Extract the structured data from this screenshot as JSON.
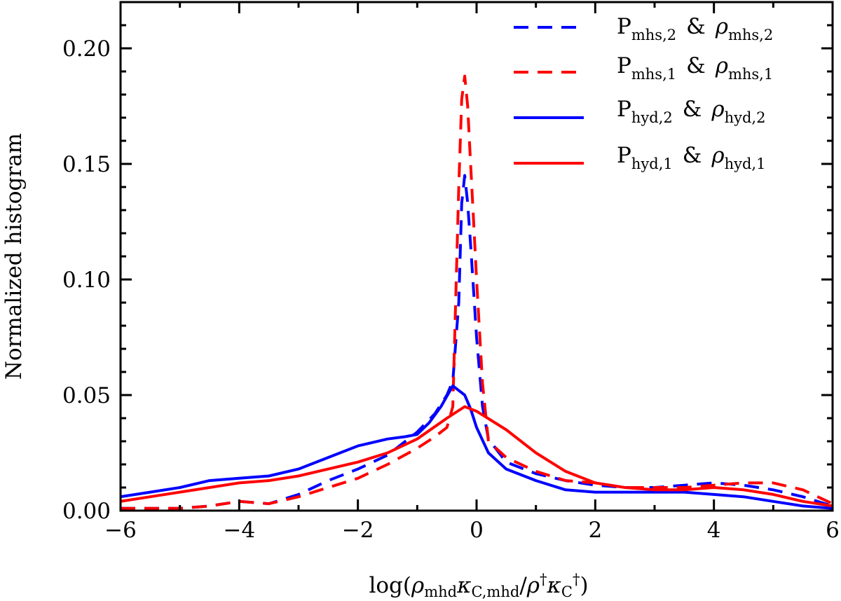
{
  "chart_data": {
    "type": "line",
    "title": "",
    "xlabel": {
      "prefix": "log(",
      "rho": "ρ",
      "mhd_sub": "mhd",
      "kappa": "κ",
      "c_mhd_sub": "C,mhd",
      "slash": "/",
      "dagger": "†",
      "c_sub": "C",
      "suffix": ")"
    },
    "ylabel": "Normalized histogram",
    "xlim": [
      -6,
      6
    ],
    "ylim": [
      0,
      0.22
    ],
    "xticks": [
      -6,
      -4,
      -2,
      0,
      2,
      4,
      6
    ],
    "xtick_labels": [
      "−6",
      "−4",
      "−2",
      "0",
      "2",
      "4",
      "6"
    ],
    "yticks": [
      0.0,
      0.05,
      0.1,
      0.15,
      0.2
    ],
    "ytick_labels": [
      "0.00",
      "0.05",
      "0.10",
      "0.15",
      "0.20"
    ],
    "legend_position": "top-right",
    "series": [
      {
        "name": "P_mhs,2 & ρ_mhs,2",
        "label": {
          "p": "P",
          "p_sub": "mhs,2",
          "amp": "&",
          "rho": "ρ",
          "rho_sub": "mhs,2"
        },
        "color": "#0000ff",
        "style": "dashed",
        "x": [
          -6.0,
          -5.5,
          -5.0,
          -4.5,
          -4.0,
          -3.5,
          -3.0,
          -2.5,
          -2.0,
          -1.5,
          -1.0,
          -0.7,
          -0.5,
          -0.4,
          -0.3,
          -0.25,
          -0.2,
          -0.15,
          -0.1,
          -0.05,
          0.0,
          0.1,
          0.2,
          0.5,
          1.0,
          1.5,
          2.0,
          2.5,
          3.0,
          3.5,
          4.0,
          4.5,
          5.0,
          5.5,
          6.0
        ],
        "y": [
          0.001,
          0.001,
          0.001,
          0.002,
          0.004,
          0.003,
          0.007,
          0.013,
          0.018,
          0.024,
          0.034,
          0.042,
          0.05,
          0.056,
          0.09,
          0.133,
          0.145,
          0.133,
          0.115,
          0.095,
          0.075,
          0.045,
          0.031,
          0.021,
          0.016,
          0.013,
          0.011,
          0.01,
          0.01,
          0.011,
          0.012,
          0.011,
          0.009,
          0.006,
          0.002
        ]
      },
      {
        "name": "P_mhs,1 & ρ_mhs,1",
        "label": {
          "p": "P",
          "p_sub": "mhs,1",
          "amp": "&",
          "rho": "ρ",
          "rho_sub": "mhs,1"
        },
        "color": "#ff0000",
        "style": "dashed",
        "x": [
          -6.0,
          -5.5,
          -5.0,
          -4.5,
          -4.0,
          -3.5,
          -3.0,
          -2.5,
          -2.0,
          -1.5,
          -1.0,
          -0.7,
          -0.5,
          -0.4,
          -0.3,
          -0.25,
          -0.2,
          -0.15,
          -0.1,
          -0.05,
          0.0,
          0.1,
          0.2,
          0.5,
          1.0,
          1.5,
          2.0,
          2.5,
          3.0,
          3.5,
          4.0,
          4.5,
          5.0,
          5.5,
          6.0
        ],
        "y": [
          0.001,
          0.001,
          0.001,
          0.002,
          0.004,
          0.003,
          0.006,
          0.01,
          0.014,
          0.02,
          0.027,
          0.032,
          0.036,
          0.045,
          0.14,
          0.178,
          0.188,
          0.175,
          0.15,
          0.125,
          0.1,
          0.055,
          0.03,
          0.023,
          0.017,
          0.013,
          0.012,
          0.01,
          0.01,
          0.01,
          0.011,
          0.012,
          0.012,
          0.009,
          0.003
        ]
      },
      {
        "name": "P_hyd,2 & ρ_hyd,2",
        "label": {
          "p": "P",
          "p_sub": "hyd,2",
          "amp": "&",
          "rho": "ρ",
          "rho_sub": "hyd,2"
        },
        "color": "#0000ff",
        "style": "solid",
        "x": [
          -6.0,
          -5.5,
          -5.0,
          -4.5,
          -4.0,
          -3.5,
          -3.0,
          -2.5,
          -2.0,
          -1.5,
          -1.2,
          -1.0,
          -0.8,
          -0.6,
          -0.4,
          -0.3,
          -0.2,
          -0.1,
          0.0,
          0.2,
          0.5,
          1.0,
          1.5,
          2.0,
          2.5,
          3.0,
          3.5,
          4.0,
          4.5,
          5.0,
          5.5,
          6.0
        ],
        "y": [
          0.006,
          0.008,
          0.01,
          0.013,
          0.014,
          0.015,
          0.018,
          0.023,
          0.028,
          0.031,
          0.032,
          0.033,
          0.038,
          0.045,
          0.054,
          0.052,
          0.05,
          0.044,
          0.036,
          0.025,
          0.018,
          0.013,
          0.009,
          0.008,
          0.008,
          0.008,
          0.008,
          0.007,
          0.006,
          0.004,
          0.002,
          0.001
        ]
      },
      {
        "name": "P_hyd,1 & ρ_hyd,1",
        "label": {
          "p": "P",
          "p_sub": "hyd,1",
          "amp": "&",
          "rho": "ρ",
          "rho_sub": "hyd,1"
        },
        "color": "#ff0000",
        "style": "solid",
        "x": [
          -6.0,
          -5.5,
          -5.0,
          -4.5,
          -4.0,
          -3.5,
          -3.0,
          -2.5,
          -2.0,
          -1.5,
          -1.0,
          -0.5,
          -0.2,
          0.0,
          0.5,
          1.0,
          1.5,
          2.0,
          2.5,
          3.0,
          3.5,
          4.0,
          4.5,
          5.0,
          5.5,
          6.0
        ],
        "y": [
          0.004,
          0.006,
          0.008,
          0.01,
          0.012,
          0.013,
          0.015,
          0.018,
          0.021,
          0.025,
          0.031,
          0.04,
          0.045,
          0.043,
          0.035,
          0.025,
          0.017,
          0.012,
          0.01,
          0.009,
          0.009,
          0.01,
          0.009,
          0.007,
          0.004,
          0.002
        ]
      }
    ]
  }
}
